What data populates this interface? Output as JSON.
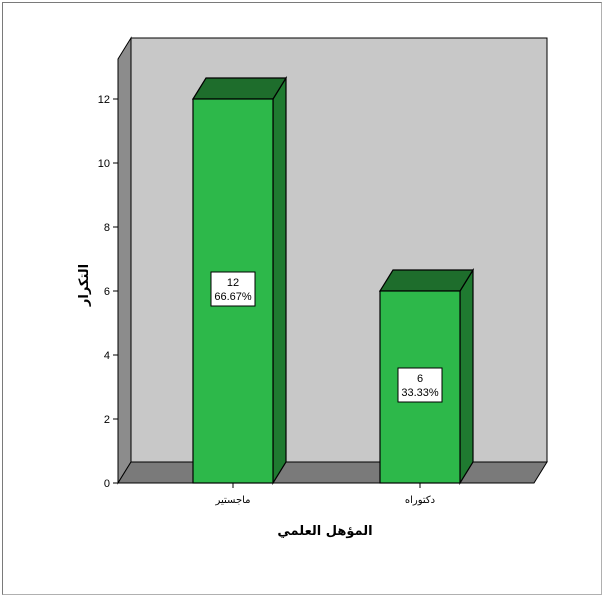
{
  "chart_data": {
    "type": "bar",
    "title": "",
    "xlabel": "المؤهل العلمي",
    "ylabel": "التكرار",
    "categories": [
      "ماجستير",
      "دكتوراه"
    ],
    "values": [
      12,
      6
    ],
    "data_labels": [
      {
        "count": "12",
        "percent": "66.67%"
      },
      {
        "count": "6",
        "percent": "33.33%"
      }
    ],
    "ylim": [
      0,
      13
    ],
    "yticks": [
      0,
      2,
      4,
      6,
      8,
      10,
      12
    ],
    "grid": false,
    "style": "3d",
    "colors": {
      "bar_front": "#2db84a",
      "bar_top": "#1e6d2c",
      "bar_side": "#1f7a30",
      "wall": "#c8c8c8",
      "floor": "#7a7a7a",
      "side_wall": "#8c8c8c"
    }
  }
}
